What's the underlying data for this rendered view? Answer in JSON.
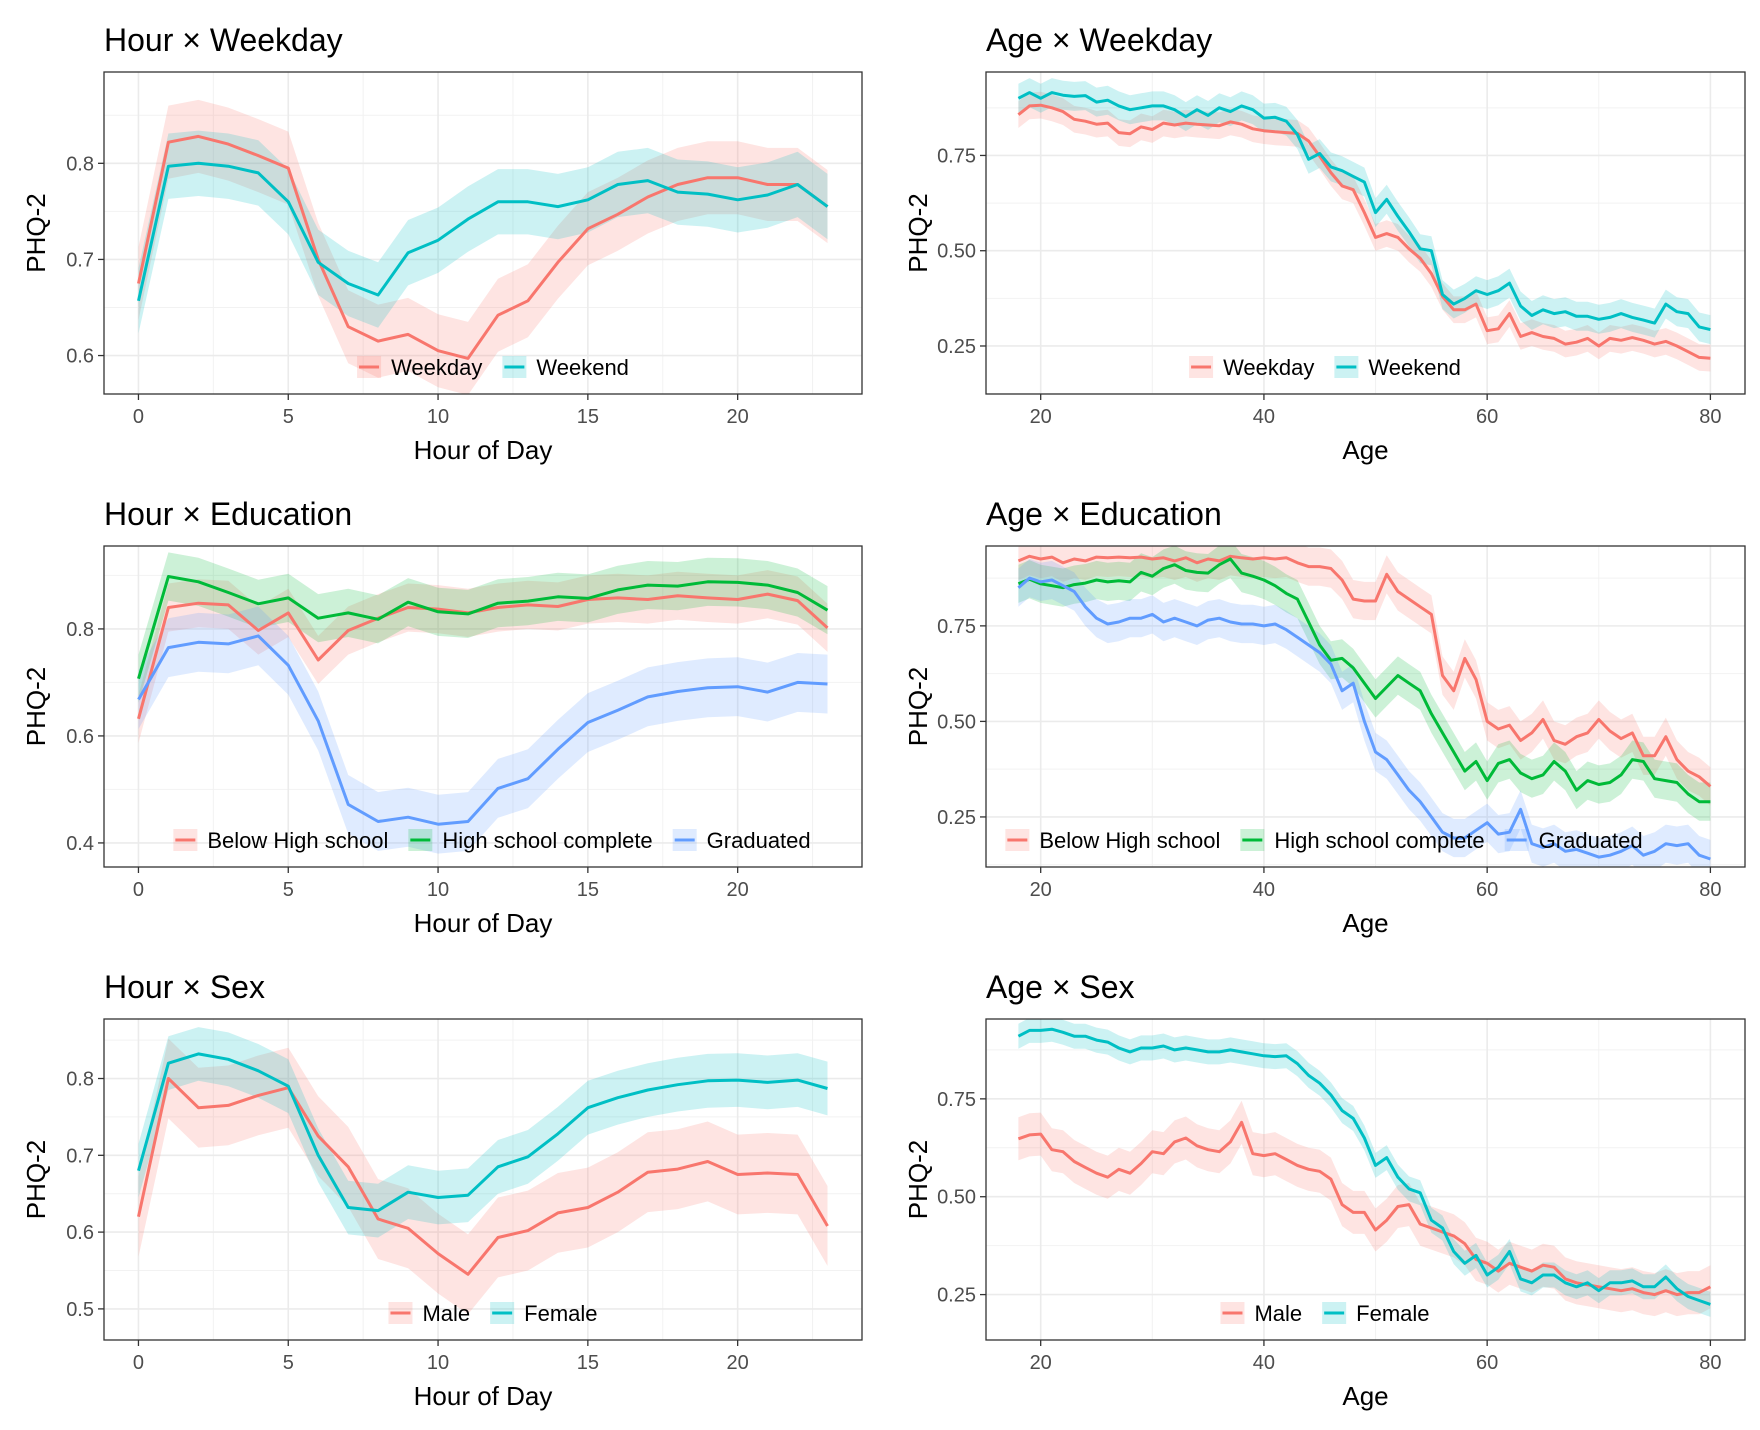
{
  "chart_data": [
    {
      "type": "line",
      "title": "Hour × Weekday",
      "xlabel": "Hour of Day",
      "ylabel": "PHQ-2",
      "xlim": [
        -1.15,
        24.15
      ],
      "ylim": [
        0.56,
        0.895
      ],
      "xticks": [
        0,
        5,
        10,
        15,
        20
      ],
      "xtick_labels": [
        "0",
        "5",
        "10",
        "15",
        "20"
      ],
      "yticks": [
        0.6,
        0.7,
        0.8
      ],
      "ytick_labels": [
        "0.6",
        "0.7",
        "0.8"
      ],
      "x": [
        0,
        1,
        2,
        3,
        4,
        5,
        6,
        7,
        8,
        9,
        10,
        11,
        12,
        13,
        14,
        15,
        16,
        17,
        18,
        19,
        20,
        21,
        22,
        23
      ],
      "series": [
        {
          "name": "Weekday",
          "color": "#F8766D",
          "band": 0.038,
          "values": [
            0.675,
            0.822,
            0.828,
            0.82,
            0.808,
            0.795,
            0.7,
            0.63,
            0.615,
            0.622,
            0.605,
            0.597,
            0.642,
            0.657,
            0.697,
            0.732,
            0.747,
            0.765,
            0.778,
            0.785,
            0.785,
            0.778,
            0.778,
            0.755
          ]
        },
        {
          "name": "Weekend",
          "color": "#00BFC4",
          "band": 0.034,
          "values": [
            0.657,
            0.797,
            0.8,
            0.797,
            0.79,
            0.76,
            0.697,
            0.675,
            0.663,
            0.707,
            0.72,
            0.742,
            0.76,
            0.76,
            0.755,
            0.762,
            0.778,
            0.782,
            0.77,
            0.768,
            0.762,
            0.767,
            0.778,
            0.755
          ]
        }
      ]
    },
    {
      "type": "line",
      "title": "Age × Weekday",
      "xlabel": "Age",
      "ylabel": "PHQ-2",
      "xlim": [
        15.1,
        83.1
      ],
      "ylim": [
        0.124,
        0.969
      ],
      "xticks": [
        20,
        40,
        60,
        80
      ],
      "xtick_labels": [
        "20",
        "40",
        "60",
        "80"
      ],
      "yticks": [
        0.25,
        0.5,
        0.75
      ],
      "ytick_labels": [
        "0.25",
        "0.50",
        "0.75"
      ],
      "x": [
        18,
        19,
        20,
        21,
        22,
        23,
        24,
        25,
        26,
        27,
        28,
        29,
        30,
        31,
        32,
        33,
        34,
        35,
        36,
        37,
        38,
        39,
        40,
        41,
        42,
        43,
        44,
        45,
        46,
        47,
        48,
        49,
        50,
        51,
        52,
        53,
        54,
        55,
        56,
        57,
        58,
        59,
        60,
        61,
        62,
        63,
        64,
        65,
        66,
        67,
        68,
        69,
        70,
        71,
        72,
        73,
        74,
        75,
        76,
        77,
        78,
        79,
        80
      ],
      "series": [
        {
          "name": "Weekday",
          "color": "#F8766D",
          "band": 0.035,
          "values": [
            0.857,
            0.88,
            0.882,
            0.875,
            0.865,
            0.845,
            0.84,
            0.832,
            0.835,
            0.81,
            0.807,
            0.825,
            0.818,
            0.835,
            0.83,
            0.835,
            0.832,
            0.83,
            0.828,
            0.838,
            0.832,
            0.82,
            0.815,
            0.812,
            0.81,
            0.808,
            0.788,
            0.748,
            0.705,
            0.67,
            0.66,
            0.6,
            0.535,
            0.545,
            0.535,
            0.505,
            0.48,
            0.44,
            0.38,
            0.345,
            0.345,
            0.36,
            0.29,
            0.295,
            0.335,
            0.275,
            0.285,
            0.275,
            0.27,
            0.255,
            0.26,
            0.27,
            0.25,
            0.27,
            0.265,
            0.272,
            0.265,
            0.255,
            0.262,
            0.25,
            0.235,
            0.22,
            0.218
          ]
        },
        {
          "name": "Weekend",
          "color": "#00BFC4",
          "band": 0.038,
          "values": [
            0.9,
            0.915,
            0.9,
            0.915,
            0.908,
            0.905,
            0.907,
            0.89,
            0.895,
            0.88,
            0.87,
            0.875,
            0.88,
            0.88,
            0.87,
            0.852,
            0.87,
            0.855,
            0.875,
            0.865,
            0.88,
            0.87,
            0.848,
            0.85,
            0.84,
            0.805,
            0.74,
            0.755,
            0.72,
            0.71,
            0.695,
            0.68,
            0.6,
            0.635,
            0.59,
            0.55,
            0.505,
            0.5,
            0.385,
            0.36,
            0.375,
            0.395,
            0.385,
            0.395,
            0.415,
            0.355,
            0.33,
            0.345,
            0.335,
            0.34,
            0.328,
            0.328,
            0.32,
            0.325,
            0.335,
            0.325,
            0.318,
            0.31,
            0.36,
            0.34,
            0.335,
            0.3,
            0.293
          ]
        }
      ]
    },
    {
      "type": "line",
      "title": "Hour × Education",
      "xlabel": "Hour of Day",
      "ylabel": "PHQ-2",
      "xlim": [
        -1.15,
        24.15
      ],
      "ylim": [
        0.355,
        0.955
      ],
      "xticks": [
        0,
        5,
        10,
        15,
        20
      ],
      "xtick_labels": [
        "0",
        "5",
        "10",
        "15",
        "20"
      ],
      "yticks": [
        0.4,
        0.6,
        0.8
      ],
      "ytick_labels": [
        "0.4",
        "0.6",
        "0.8"
      ],
      "x": [
        0,
        1,
        2,
        3,
        4,
        5,
        6,
        7,
        8,
        9,
        10,
        11,
        12,
        13,
        14,
        15,
        16,
        17,
        18,
        19,
        20,
        21,
        22,
        23
      ],
      "series": [
        {
          "name": "Below High school",
          "color": "#F8766D",
          "band": 0.045,
          "values": [
            0.632,
            0.84,
            0.848,
            0.845,
            0.797,
            0.83,
            0.742,
            0.797,
            0.82,
            0.84,
            0.837,
            0.83,
            0.84,
            0.845,
            0.842,
            0.855,
            0.858,
            0.855,
            0.862,
            0.858,
            0.855,
            0.865,
            0.853,
            0.802
          ]
        },
        {
          "name": "High school complete",
          "color": "#00BA38",
          "band": 0.045,
          "values": [
            0.707,
            0.898,
            0.888,
            0.868,
            0.847,
            0.858,
            0.82,
            0.83,
            0.818,
            0.85,
            0.832,
            0.828,
            0.848,
            0.852,
            0.86,
            0.857,
            0.873,
            0.882,
            0.88,
            0.888,
            0.887,
            0.882,
            0.868,
            0.835
          ]
        },
        {
          "name": "Graduated",
          "color": "#619CFF",
          "band": 0.055,
          "values": [
            0.668,
            0.765,
            0.775,
            0.772,
            0.787,
            0.732,
            0.628,
            0.472,
            0.44,
            0.448,
            0.435,
            0.44,
            0.502,
            0.52,
            0.575,
            0.625,
            0.648,
            0.673,
            0.683,
            0.69,
            0.692,
            0.682,
            0.7,
            0.697
          ]
        }
      ]
    },
    {
      "type": "line",
      "title": "Age × Education",
      "xlabel": "Age",
      "ylabel": "PHQ-2",
      "xlim": [
        15.1,
        83.1
      ],
      "ylim": [
        0.119,
        0.959
      ],
      "xticks": [
        20,
        40,
        60,
        80
      ],
      "xtick_labels": [
        "20",
        "40",
        "60",
        "80"
      ],
      "yticks": [
        0.25,
        0.5,
        0.75
      ],
      "ytick_labels": [
        "0.25",
        "0.50",
        "0.75"
      ],
      "x": [
        18,
        19,
        20,
        21,
        22,
        23,
        24,
        25,
        26,
        27,
        28,
        29,
        30,
        31,
        32,
        33,
        34,
        35,
        36,
        37,
        38,
        39,
        40,
        41,
        42,
        43,
        44,
        45,
        46,
        47,
        48,
        49,
        50,
        51,
        52,
        53,
        54,
        55,
        56,
        57,
        58,
        59,
        60,
        61,
        62,
        63,
        64,
        65,
        66,
        67,
        68,
        69,
        70,
        71,
        72,
        73,
        74,
        75,
        76,
        77,
        78,
        79,
        80
      ],
      "series": [
        {
          "name": "Below High school",
          "color": "#F8766D",
          "band": 0.05,
          "values": [
            0.92,
            0.932,
            0.925,
            0.93,
            0.915,
            0.925,
            0.92,
            0.93,
            0.928,
            0.93,
            0.928,
            0.93,
            0.925,
            0.928,
            0.92,
            0.928,
            0.915,
            0.925,
            0.92,
            0.932,
            0.928,
            0.925,
            0.928,
            0.925,
            0.928,
            0.915,
            0.905,
            0.905,
            0.9,
            0.87,
            0.82,
            0.815,
            0.815,
            0.885,
            0.84,
            0.82,
            0.8,
            0.78,
            0.62,
            0.58,
            0.665,
            0.61,
            0.5,
            0.48,
            0.49,
            0.45,
            0.47,
            0.505,
            0.45,
            0.44,
            0.46,
            0.47,
            0.505,
            0.475,
            0.455,
            0.47,
            0.41,
            0.41,
            0.46,
            0.4,
            0.37,
            0.355,
            0.33
          ]
        },
        {
          "name": "High school complete",
          "color": "#00BA38",
          "band": 0.05,
          "values": [
            0.86,
            0.872,
            0.86,
            0.855,
            0.85,
            0.858,
            0.862,
            0.87,
            0.865,
            0.868,
            0.865,
            0.89,
            0.88,
            0.9,
            0.91,
            0.895,
            0.89,
            0.888,
            0.91,
            0.925,
            0.888,
            0.88,
            0.87,
            0.855,
            0.835,
            0.82,
            0.76,
            0.7,
            0.66,
            0.665,
            0.64,
            0.6,
            0.56,
            0.59,
            0.62,
            0.6,
            0.58,
            0.52,
            0.47,
            0.42,
            0.37,
            0.395,
            0.345,
            0.39,
            0.4,
            0.365,
            0.35,
            0.36,
            0.395,
            0.37,
            0.32,
            0.345,
            0.335,
            0.34,
            0.36,
            0.4,
            0.395,
            0.35,
            0.345,
            0.34,
            0.31,
            0.29,
            0.29
          ]
        },
        {
          "name": "Graduated",
          "color": "#619CFF",
          "band": 0.05,
          "values": [
            0.85,
            0.875,
            0.865,
            0.87,
            0.855,
            0.84,
            0.8,
            0.77,
            0.755,
            0.76,
            0.77,
            0.77,
            0.78,
            0.76,
            0.77,
            0.76,
            0.75,
            0.765,
            0.77,
            0.76,
            0.755,
            0.755,
            0.75,
            0.755,
            0.74,
            0.72,
            0.7,
            0.68,
            0.65,
            0.58,
            0.6,
            0.5,
            0.42,
            0.4,
            0.36,
            0.32,
            0.29,
            0.25,
            0.21,
            0.195,
            0.195,
            0.215,
            0.235,
            0.205,
            0.21,
            0.27,
            0.18,
            0.17,
            0.18,
            0.16,
            0.165,
            0.155,
            0.145,
            0.15,
            0.16,
            0.175,
            0.15,
            0.16,
            0.18,
            0.175,
            0.18,
            0.15,
            0.14
          ]
        }
      ]
    },
    {
      "type": "line",
      "title": "Hour × Sex",
      "xlabel": "Hour of Day",
      "ylabel": "PHQ-2",
      "xlim": [
        -1.15,
        24.15
      ],
      "ylim": [
        0.4595,
        0.8775
      ],
      "xticks": [
        0,
        5,
        10,
        15,
        20
      ],
      "xtick_labels": [
        "0",
        "5",
        "10",
        "15",
        "20"
      ],
      "yticks": [
        0.5,
        0.6,
        0.7,
        0.8
      ],
      "ytick_labels": [
        "0.5",
        "0.6",
        "0.7",
        "0.8"
      ],
      "x": [
        0,
        1,
        2,
        3,
        4,
        5,
        6,
        7,
        8,
        9,
        10,
        11,
        12,
        13,
        14,
        15,
        16,
        17,
        18,
        19,
        20,
        21,
        22,
        23
      ],
      "series": [
        {
          "name": "Male",
          "color": "#F8766D",
          "band": 0.052,
          "values": [
            0.62,
            0.8,
            0.762,
            0.765,
            0.778,
            0.788,
            0.725,
            0.685,
            0.617,
            0.605,
            0.572,
            0.545,
            0.593,
            0.602,
            0.625,
            0.632,
            0.652,
            0.678,
            0.682,
            0.692,
            0.675,
            0.677,
            0.675,
            0.608
          ]
        },
        {
          "name": "Female",
          "color": "#00BFC4",
          "band": 0.035,
          "values": [
            0.68,
            0.82,
            0.832,
            0.825,
            0.81,
            0.79,
            0.7,
            0.632,
            0.628,
            0.652,
            0.645,
            0.648,
            0.685,
            0.698,
            0.728,
            0.762,
            0.775,
            0.785,
            0.792,
            0.797,
            0.798,
            0.795,
            0.798,
            0.787
          ]
        }
      ]
    },
    {
      "type": "line",
      "title": "Age × Sex",
      "xlabel": "Age",
      "ylabel": "PHQ-2",
      "xlim": [
        15.1,
        83.1
      ],
      "ylim": [
        0.134,
        0.954
      ],
      "xticks": [
        20,
        40,
        60,
        80
      ],
      "xtick_labels": [
        "20",
        "40",
        "60",
        "80"
      ],
      "yticks": [
        0.25,
        0.5,
        0.75
      ],
      "ytick_labels": [
        "0.25",
        "0.50",
        "0.75"
      ],
      "x": [
        18,
        19,
        20,
        21,
        22,
        23,
        24,
        25,
        26,
        27,
        28,
        29,
        30,
        31,
        32,
        33,
        34,
        35,
        36,
        37,
        38,
        39,
        40,
        41,
        42,
        43,
        44,
        45,
        46,
        47,
        48,
        49,
        50,
        51,
        52,
        53,
        54,
        55,
        56,
        57,
        58,
        59,
        60,
        61,
        62,
        63,
        64,
        65,
        66,
        67,
        68,
        69,
        70,
        71,
        72,
        73,
        74,
        75,
        76,
        77,
        78,
        79,
        80
      ],
      "series": [
        {
          "name": "Male",
          "color": "#F8766D",
          "band": 0.055,
          "values": [
            0.648,
            0.658,
            0.66,
            0.62,
            0.615,
            0.59,
            0.575,
            0.56,
            0.55,
            0.57,
            0.56,
            0.585,
            0.615,
            0.61,
            0.64,
            0.65,
            0.63,
            0.62,
            0.615,
            0.64,
            0.69,
            0.61,
            0.605,
            0.61,
            0.595,
            0.58,
            0.57,
            0.565,
            0.545,
            0.48,
            0.46,
            0.46,
            0.415,
            0.44,
            0.475,
            0.48,
            0.43,
            0.42,
            0.41,
            0.4,
            0.38,
            0.34,
            0.33,
            0.31,
            0.33,
            0.32,
            0.31,
            0.325,
            0.32,
            0.29,
            0.28,
            0.275,
            0.27,
            0.265,
            0.26,
            0.265,
            0.255,
            0.25,
            0.26,
            0.25,
            0.255,
            0.255,
            0.27
          ]
        },
        {
          "name": "Female",
          "color": "#00BFC4",
          "band": 0.032,
          "values": [
            0.91,
            0.925,
            0.925,
            0.928,
            0.92,
            0.91,
            0.91,
            0.9,
            0.895,
            0.88,
            0.87,
            0.88,
            0.88,
            0.885,
            0.875,
            0.88,
            0.875,
            0.87,
            0.87,
            0.875,
            0.87,
            0.865,
            0.86,
            0.858,
            0.86,
            0.84,
            0.81,
            0.79,
            0.76,
            0.72,
            0.7,
            0.65,
            0.58,
            0.6,
            0.55,
            0.52,
            0.51,
            0.44,
            0.42,
            0.36,
            0.33,
            0.35,
            0.3,
            0.32,
            0.36,
            0.29,
            0.28,
            0.3,
            0.3,
            0.28,
            0.27,
            0.28,
            0.26,
            0.28,
            0.28,
            0.285,
            0.27,
            0.27,
            0.295,
            0.265,
            0.245,
            0.235,
            0.225
          ]
        }
      ]
    }
  ]
}
